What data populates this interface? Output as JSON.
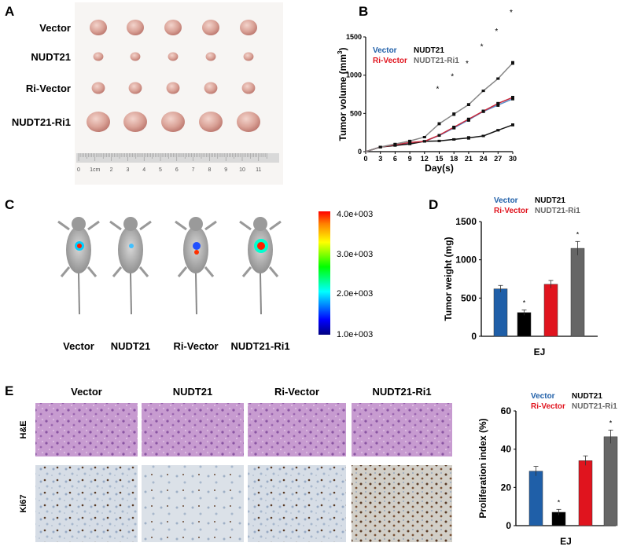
{
  "panels": {
    "a": "A",
    "b": "B",
    "c": "C",
    "d": "D",
    "e": "E"
  },
  "colors": {
    "Vector": "#1f5fa8",
    "NUDT21": "#000000",
    "Ri-Vector": "#e0141e",
    "NUDT21-Ri1": "#666666",
    "Vector_line": "#5b8fc9",
    "Ri-Vector_line": "#c8283a",
    "NUDT21-Ri1_line": "#888888"
  },
  "panel_a": {
    "rows": [
      "Vector",
      "NUDT21",
      "Ri-Vector",
      "NUDT21-Ri1"
    ],
    "ruler": {
      "labels": [
        "0",
        "1cm",
        "2",
        "3",
        "4",
        "5",
        "6",
        "7",
        "8",
        "9",
        "10",
        "11"
      ]
    }
  },
  "panel_c": {
    "groups": [
      "Vector",
      "NUDT21",
      "Ri-Vector",
      "NUDT21-Ri1"
    ],
    "colorbar": {
      "labels": [
        "4.0e+003",
        "3.0e+003",
        "2.0e+003",
        "1.0e+003"
      ],
      "min": 1000,
      "max": 4000,
      "colormap": "rainbow"
    }
  },
  "panel_e": {
    "columns": [
      "Vector",
      "NUDT21",
      "Ri-Vector",
      "NUDT21-Ri1"
    ],
    "rows": [
      "H&E",
      "Ki67"
    ]
  },
  "chart_data": [
    {
      "id": "B",
      "type": "line",
      "xlabel": "Day(s)",
      "ylabel": "Tumor volume (mm3)",
      "ylabel_parts": {
        "main": "Tumor volume (mm",
        "sup": "3",
        ")": ")"
      },
      "x": [
        0,
        3,
        6,
        9,
        12,
        15,
        18,
        21,
        24,
        27,
        30
      ],
      "xticks": [
        "0",
        "3",
        "6",
        "9",
        "12",
        "15",
        "18",
        "21",
        "24",
        "27",
        "30"
      ],
      "yticks": [
        "0",
        "500",
        "1000",
        "1500"
      ],
      "ylim": [
        0,
        1500
      ],
      "xlim": [
        0,
        30
      ],
      "legend": [
        "Vector",
        "NUDT21",
        "Ri-Vector",
        "NUDT21-Ri1"
      ],
      "legend_position": "top-left",
      "series": [
        {
          "name": "Vector",
          "values": [
            0,
            60,
            85,
            115,
            135,
            210,
            310,
            415,
            525,
            610,
            690
          ],
          "errors": [
            0,
            5,
            8,
            8,
            8,
            10,
            15,
            20,
            15,
            20,
            15
          ]
        },
        {
          "name": "NUDT21",
          "values": [
            0,
            60,
            80,
            100,
            135,
            140,
            160,
            180,
            205,
            280,
            350
          ],
          "errors": [
            0,
            5,
            8,
            8,
            8,
            8,
            10,
            18,
            10,
            10,
            15
          ]
        },
        {
          "name": "Ri-Vector",
          "values": [
            0,
            60,
            90,
            120,
            135,
            215,
            320,
            425,
            530,
            630,
            710
          ],
          "errors": [
            0,
            5,
            8,
            8,
            8,
            10,
            15,
            15,
            15,
            15,
            15
          ]
        },
        {
          "name": "NUDT21-Ri1",
          "values": [
            0,
            60,
            100,
            140,
            190,
            365,
            490,
            615,
            795,
            955,
            1160
          ],
          "errors": [
            0,
            5,
            8,
            8,
            8,
            15,
            18,
            15,
            10,
            10,
            20
          ]
        }
      ],
      "significance_days": [
        15,
        18,
        21,
        24,
        27,
        30
      ],
      "significance_mark": "*"
    },
    {
      "id": "D",
      "type": "bar",
      "categories": [
        "Vector",
        "NUDT21",
        "Ri-Vector",
        "NUDT21-Ri1"
      ],
      "values": [
        620,
        310,
        680,
        1150
      ],
      "errors": [
        45,
        35,
        50,
        90
      ],
      "significant": [
        false,
        true,
        false,
        true
      ],
      "significance_mark": "*",
      "xlabel": "EJ",
      "ylabel": "Tumor weight (mg)",
      "yticks": [
        "0",
        "500",
        "1000",
        "1500"
      ],
      "ylim": [
        0,
        1500
      ],
      "legend": [
        "Vector",
        "NUDT21",
        "Ri-Vector",
        "NUDT21-Ri1"
      ],
      "legend_position": "top"
    },
    {
      "id": "E",
      "type": "bar",
      "categories": [
        "Vector",
        "NUDT21",
        "Ri-Vector",
        "NUDT21-Ri1"
      ],
      "values": [
        28.5,
        7,
        34,
        46.5
      ],
      "errors": [
        2.5,
        1.5,
        2.5,
        3.5
      ],
      "significant": [
        false,
        true,
        false,
        true
      ],
      "significance_mark": "*",
      "xlabel": "EJ",
      "ylabel": "Proliferation index (%)",
      "yticks": [
        "0",
        "20",
        "40",
        "60"
      ],
      "ylim": [
        0,
        60
      ],
      "legend": [
        "Vector",
        "NUDT21",
        "Ri-Vector",
        "NUDT21-Ri1"
      ],
      "legend_position": "top"
    }
  ]
}
